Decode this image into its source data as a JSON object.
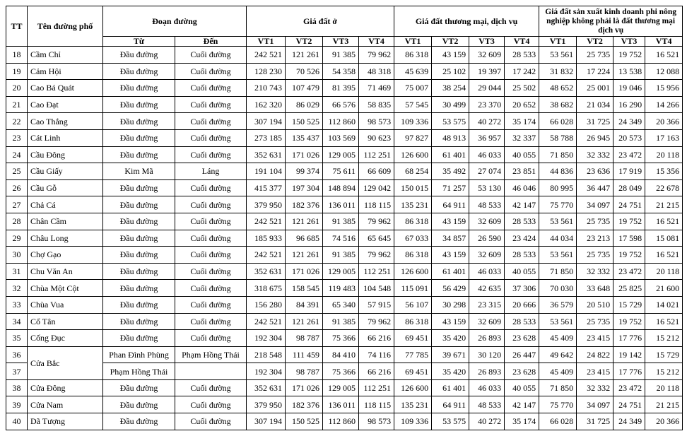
{
  "table": {
    "header": {
      "tt": "TT",
      "name": "Tên đường phố",
      "segment": "Đoạn đường",
      "from": "Từ",
      "to": "Đến",
      "groups": [
        {
          "title": "Giá đất ở",
          "positions": [
            "VT1",
            "VT2",
            "VT3",
            "VT4"
          ]
        },
        {
          "title": "Giá đất thương mại, dịch vụ",
          "positions": [
            "VT1",
            "VT2",
            "VT3",
            "VT4"
          ]
        },
        {
          "title": "Giá đất sản xuất kinh doanh phi nông nghiệp không phải là đất thương mại dịch vụ",
          "positions": [
            "VT1",
            "VT2",
            "VT3",
            "VT4"
          ]
        }
      ]
    },
    "rows": [
      [
        "18",
        "Cầm Chỉ",
        "Đầu đường",
        "Cuối đường",
        "242 521",
        "121 261",
        "91 385",
        "79 962",
        "86 318",
        "43 159",
        "32 609",
        "28 533",
        "53 561",
        "25 735",
        "19 752",
        "16 521"
      ],
      [
        "19",
        "Cảm Hội",
        "Đầu đường",
        "Cuối đường",
        "128 230",
        "70 526",
        "54 358",
        "48 318",
        "45 639",
        "25 102",
        "19 397",
        "17 242",
        "31 832",
        "17 224",
        "13 538",
        "12 088"
      ],
      [
        "20",
        "Cao Bá Quát",
        "Đầu đường",
        "Cuối đường",
        "210 743",
        "107 479",
        "81 395",
        "71 469",
        "75 007",
        "38 254",
        "29 044",
        "25 502",
        "48 652",
        "25 001",
        "19 046",
        "15 956"
      ],
      [
        "21",
        "Cao Đạt",
        "Đầu đường",
        "Cuối đường",
        "162 320",
        "86 029",
        "66 576",
        "58 835",
        "57 545",
        "30 499",
        "23 370",
        "20 652",
        "38 682",
        "21 034",
        "16 290",
        "14 266"
      ],
      [
        "22",
        "Cao Thắng",
        "Đầu đường",
        "Cuối đường",
        "307 194",
        "150 525",
        "112 860",
        "98 573",
        "109 336",
        "53 575",
        "40 272",
        "35 174",
        "66 028",
        "31 725",
        "24 349",
        "20 366"
      ],
      [
        "23",
        "Cát Linh",
        "Đầu đường",
        "Cuối đường",
        "273 185",
        "135 437",
        "103 569",
        "90 623",
        "97 827",
        "48 913",
        "36 957",
        "32 337",
        "58 788",
        "26 945",
        "20 573",
        "17 163"
      ],
      [
        "24",
        "Cầu Đông",
        "Đầu đường",
        "Cuối đường",
        "352 631",
        "171 026",
        "129 005",
        "112 251",
        "126 600",
        "61 401",
        "46 033",
        "40 055",
        "71 850",
        "32 332",
        "23 472",
        "20 118"
      ],
      [
        "25",
        "Cầu Giấy",
        "Kim Mã",
        "Láng",
        "191 104",
        "99 374",
        "75 611",
        "66 609",
        "68 254",
        "35 492",
        "27 074",
        "23 851",
        "44 836",
        "23 636",
        "17 919",
        "15 356"
      ],
      [
        "26",
        "Cầu Gỗ",
        "Đầu đường",
        "Cuối đường",
        "415 377",
        "197 304",
        "148 894",
        "129 042",
        "150 015",
        "71 257",
        "53 130",
        "46 046",
        "80 995",
        "36 447",
        "28 049",
        "22 678"
      ],
      [
        "27",
        "Chả Cá",
        "Đầu đường",
        "Cuối đường",
        "379 950",
        "182 376",
        "136 011",
        "118 115",
        "135 231",
        "64 911",
        "48 533",
        "42 147",
        "75 770",
        "34 097",
        "24 751",
        "21 215"
      ],
      [
        "28",
        "Chân Cầm",
        "Đầu đường",
        "Cuối đường",
        "242 521",
        "121 261",
        "91 385",
        "79 962",
        "86 318",
        "43 159",
        "32 609",
        "28 533",
        "53 561",
        "25 735",
        "19 752",
        "16 521"
      ],
      [
        "29",
        "Châu Long",
        "Đầu đường",
        "Cuối đường",
        "185 933",
        "96 685",
        "74 516",
        "65 645",
        "67 033",
        "34 857",
        "26 590",
        "23 424",
        "44 034",
        "23 213",
        "17 598",
        "15 081"
      ],
      [
        "30",
        "Chợ Gạo",
        "Đầu đường",
        "Cuối đường",
        "242 521",
        "121 261",
        "91 385",
        "79 962",
        "86 318",
        "43 159",
        "32 609",
        "28 533",
        "53 561",
        "25 735",
        "19 752",
        "16 521"
      ],
      [
        "31",
        "Chu Văn An",
        "Đầu đường",
        "Cuối đường",
        "352 631",
        "171 026",
        "129 005",
        "112 251",
        "126 600",
        "61 401",
        "46 033",
        "40 055",
        "71 850",
        "32 332",
        "23 472",
        "20 118"
      ],
      [
        "32",
        "Chùa Một Cột",
        "Đầu đường",
        "Cuối đường",
        "318 675",
        "158 545",
        "119 483",
        "104 548",
        "115 091",
        "56 429",
        "42 635",
        "37 306",
        "70 030",
        "33 648",
        "25 825",
        "21 600"
      ],
      [
        "33",
        "Chùa Vua",
        "Đầu đường",
        "Cuối đường",
        "156 280",
        "84 391",
        "65 340",
        "57 915",
        "56 107",
        "30 298",
        "23 315",
        "20 666",
        "36 579",
        "20 510",
        "15 729",
        "14 021"
      ],
      [
        "34",
        "Cổ Tân",
        "Đầu đường",
        "Cuối đường",
        "242 521",
        "121 261",
        "91 385",
        "79 962",
        "86 318",
        "43 159",
        "32 609",
        "28 533",
        "53 561",
        "25 735",
        "19 752",
        "16 521"
      ],
      [
        "35",
        "Cống Đục",
        "Đầu đường",
        "Cuối đường",
        "192 304",
        "98 787",
        "75 366",
        "66 216",
        "69 451",
        "35 420",
        "26 893",
        "23 628",
        "45 409",
        "23 415",
        "17 776",
        "15 212"
      ],
      [
        "36",
        "Cửa Bắc",
        "Phan Đình Phùng",
        "Phạm Hồng Thái",
        "218 548",
        "111 459",
        "84 410",
        "74 116",
        "77 785",
        "39 671",
        "30 120",
        "26 447",
        "49 642",
        "24 822",
        "19 142",
        "15 729"
      ],
      [
        "37",
        null,
        "Phạm Hồng Thái",
        null,
        "192 304",
        "98 787",
        "75 366",
        "66 216",
        "69 451",
        "35 420",
        "26 893",
        "23 628",
        "45 409",
        "23 415",
        "17 776",
        "15 212"
      ],
      [
        "38",
        "Cửa Đông",
        "Đầu đường",
        "Cuối đường",
        "352 631",
        "171 026",
        "129 005",
        "112 251",
        "126 600",
        "61 401",
        "46 033",
        "40 055",
        "71 850",
        "32 332",
        "23 472",
        "20 118"
      ],
      [
        "39",
        "Cửa Nam",
        "Đầu đường",
        "Cuối đường",
        "379 950",
        "182 376",
        "136 011",
        "118 115",
        "135 231",
        "64 911",
        "48 533",
        "42 147",
        "75 770",
        "34 097",
        "24 751",
        "21 215"
      ],
      [
        "40",
        "Dã Tượng",
        "Đầu đường",
        "Cuối đường",
        "307 194",
        "150 525",
        "112 860",
        "98 573",
        "109 336",
        "53 575",
        "40 272",
        "35 174",
        "66 028",
        "31 725",
        "24 349",
        "20 366"
      ]
    ]
  }
}
